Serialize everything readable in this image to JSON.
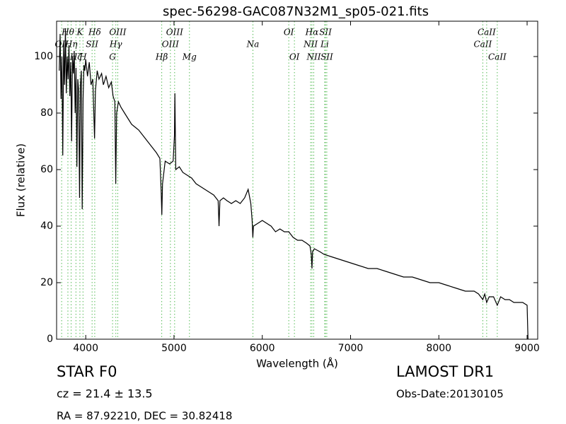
{
  "chart_data": {
    "type": "line",
    "title": "spec-56298-GAC087N32M1_sp05-021.fits",
    "x_label": "Wavelength (Å)",
    "y_label": "Flux (relative)",
    "xlim": [
      3670,
      9120
    ],
    "ylim": [
      0,
      112.5
    ],
    "xticks": [
      4000,
      5000,
      6000,
      7000,
      8000,
      9000
    ],
    "yticks": [
      0,
      20,
      40,
      60,
      80,
      100
    ],
    "color": "#000000",
    "x": [
      3700,
      3710,
      3720,
      3730,
      3740,
      3750,
      3760,
      3770,
      3780,
      3790,
      3800,
      3810,
      3820,
      3830,
      3840,
      3850,
      3860,
      3870,
      3880,
      3890,
      3900,
      3910,
      3920,
      3930,
      3940,
      3950,
      3960,
      3970,
      3980,
      3990,
      4000,
      4020,
      4040,
      4060,
      4080,
      4100,
      4110,
      4130,
      4150,
      4180,
      4200,
      4230,
      4260,
      4290,
      4310,
      4330,
      4340,
      4350,
      4370,
      4400,
      4440,
      4480,
      4520,
      4560,
      4600,
      4650,
      4700,
      4750,
      4800,
      4840,
      4855,
      4862,
      4870,
      4900,
      4950,
      4990,
      5005,
      5010,
      5020,
      5060,
      5100,
      5150,
      5200,
      5250,
      5300,
      5350,
      5400,
      5450,
      5500,
      5510,
      5520,
      5560,
      5600,
      5650,
      5700,
      5750,
      5800,
      5840,
      5870,
      5885,
      5893,
      5900,
      5950,
      6000,
      6050,
      6100,
      6150,
      6200,
      6250,
      6300,
      6350,
      6400,
      6450,
      6500,
      6540,
      6555,
      6563,
      6570,
      6590,
      6650,
      6700,
      6800,
      6900,
      7000,
      7100,
      7200,
      7300,
      7400,
      7500,
      7600,
      7700,
      7800,
      7900,
      8000,
      8100,
      8200,
      8300,
      8400,
      8450,
      8498,
      8520,
      8542,
      8570,
      8620,
      8662,
      8700,
      8750,
      8800,
      8850,
      8900,
      8950,
      9000,
      9010
    ],
    "values": [
      95,
      108,
      85,
      100,
      65,
      105,
      90,
      110,
      87,
      100,
      92,
      104,
      86,
      98,
      70,
      100,
      94,
      102,
      80,
      96,
      61,
      92,
      88,
      50,
      90,
      95,
      46,
      85,
      97,
      95,
      99,
      93,
      98,
      90,
      92,
      71,
      88,
      95,
      92,
      94,
      90,
      93,
      89,
      91,
      86,
      84,
      55,
      80,
      84,
      82,
      80,
      78,
      76,
      75,
      74,
      72,
      70,
      68,
      66,
      64,
      52,
      44,
      55,
      63,
      62,
      63,
      72,
      87,
      60,
      61,
      59,
      58,
      57,
      55,
      54,
      53,
      52,
      51,
      49,
      40,
      49,
      50,
      49,
      48,
      49,
      48,
      50,
      53,
      48,
      42,
      36,
      40,
      41,
      42,
      41,
      40,
      38,
      39,
      38,
      38,
      36,
      35,
      35,
      34,
      33,
      30,
      25,
      31,
      32,
      31,
      30,
      29,
      28,
      27,
      26,
      25,
      25,
      24,
      23,
      22,
      22,
      21,
      20,
      20,
      19,
      18,
      17,
      17,
      16,
      14,
      16,
      13,
      15,
      15,
      12,
      15,
      14,
      14,
      13,
      13,
      13,
      12,
      0
    ],
    "line_color": "#55bb55",
    "lines": [
      {
        "wavelength": 3727,
        "label": "OII"
      },
      {
        "wavelength": 3798,
        "label": "Hθ"
      },
      {
        "wavelength": 3835,
        "label": "Hη"
      },
      {
        "wavelength": 3889,
        "label": "Hζ"
      },
      {
        "wavelength": 3934,
        "label": "K"
      },
      {
        "wavelength": 3969,
        "label": "H"
      },
      {
        "wavelength": 4072,
        "label": "SII"
      },
      {
        "wavelength": 4102,
        "label": "Hδ"
      },
      {
        "wavelength": 4304,
        "label": "G"
      },
      {
        "wavelength": 4341,
        "label": "Hγ"
      },
      {
        "wavelength": 4363,
        "label": "OIII"
      },
      {
        "wavelength": 4861,
        "label": "Hβ"
      },
      {
        "wavelength": 4959,
        "label": "OIII"
      },
      {
        "wavelength": 5007,
        "label": "OIII"
      },
      {
        "wavelength": 5175,
        "label": "Mg"
      },
      {
        "wavelength": 5894,
        "label": "Na"
      },
      {
        "wavelength": 6300,
        "label": "OI"
      },
      {
        "wavelength": 6364,
        "label": "OI"
      },
      {
        "wavelength": 6548,
        "label": "NII"
      },
      {
        "wavelength": 6563,
        "label": "Hα"
      },
      {
        "wavelength": 6583,
        "label": "NII"
      },
      {
        "wavelength": 6707,
        "label": "Li"
      },
      {
        "wavelength": 6716,
        "label": "SII"
      },
      {
        "wavelength": 6731,
        "label": "SII"
      },
      {
        "wavelength": 8498,
        "label": "CaII"
      },
      {
        "wavelength": 8542,
        "label": "CaII"
      },
      {
        "wavelength": 8662,
        "label": "CaII"
      }
    ]
  },
  "info": {
    "class": "STAR",
    "subclass": "F0",
    "redshift": "cz = 21.4  ± 13.5",
    "coords": "RA = 87.92210, DEC = 30.82418",
    "survey": "LAMOST DR1",
    "obs_date": "Obs-Date:20130105"
  }
}
